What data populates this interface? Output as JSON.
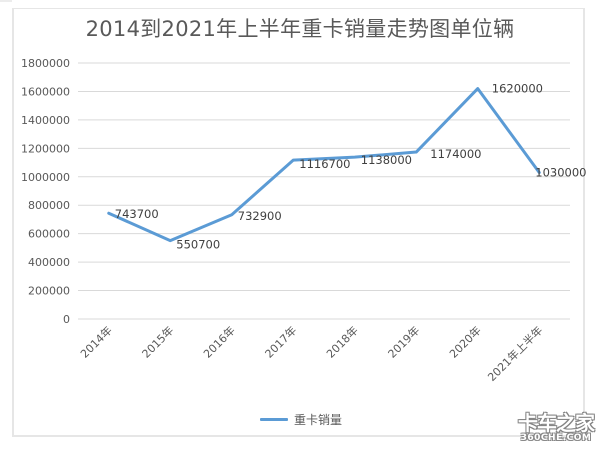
{
  "title": "2014到2021年上半年重卡销量走势图单位辆",
  "legend": {
    "label": "重卡销量",
    "color": "#5b9bd5"
  },
  "watermark": {
    "text_cn": "卡车之家",
    "text_en": "360CHE.COM"
  },
  "chart_data": {
    "type": "line",
    "title": "2014到2021年上半年重卡销量走势图单位辆",
    "xlabel": "",
    "ylabel": "",
    "categories": [
      "2014年",
      "2015年",
      "2016年",
      "2017年",
      "2018年",
      "2019年",
      "2020年",
      "2021年上半年"
    ],
    "series": [
      {
        "name": "重卡销量",
        "color": "#5b9bd5",
        "values": [
          743700,
          550700,
          732900,
          1116700,
          1138000,
          1174000,
          1620000,
          1030000
        ]
      }
    ],
    "data_labels": [
      "743700",
      "550700",
      "732900",
      "1116700",
      "1138000",
      "1174000",
      "1620000",
      "1030000"
    ],
    "ylim": [
      0,
      1800000
    ],
    "yticks": [
      0,
      200000,
      400000,
      600000,
      800000,
      1000000,
      1200000,
      1400000,
      1600000,
      1800000
    ],
    "ytick_labels": [
      "0",
      "200000",
      "400000",
      "600000",
      "800000",
      "1000000",
      "1200000",
      "1400000",
      "1600000",
      "1800000"
    ],
    "grid": true,
    "legend_position": "bottom"
  }
}
